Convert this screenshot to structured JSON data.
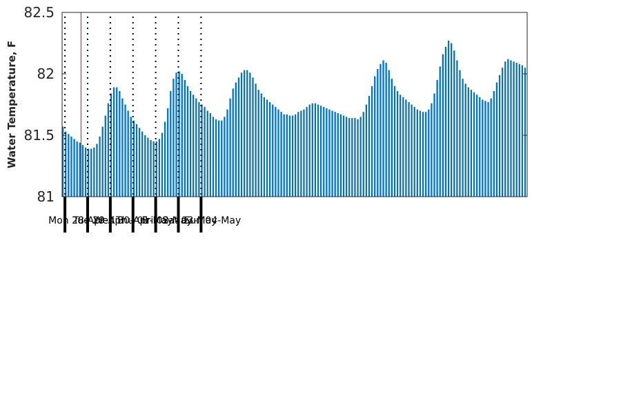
{
  "chart_data": {
    "type": "bar",
    "title": "",
    "xlabel": "",
    "ylabel": "Water Temperature, F",
    "ylim": [
      81,
      82.5
    ],
    "yticks": [
      "81",
      "81.5",
      "82",
      "82.5"
    ],
    "grid": false,
    "legend": "none",
    "bar_color": "#0072BD",
    "marker_color": "#FF0000",
    "x_start": "2025-04-27 21:00",
    "interval_hours": 3,
    "marker_time": "2025-04-28 17:00",
    "day_labels": [
      "Mon 28-Apr",
      "Tue 29-Apr",
      "Wed 30-Apr",
      "Thu 01-May",
      "Fri 02-May",
      "Sat 03-May",
      "Sun 04-May"
    ],
    "values": [
      81.57,
      81.53,
      81.51,
      81.49,
      81.47,
      81.45,
      81.44,
      81.42,
      81.4,
      81.39,
      81.39,
      81.4,
      81.43,
      81.49,
      81.57,
      81.66,
      81.76,
      81.84,
      81.89,
      81.89,
      81.86,
      81.8,
      81.75,
      81.7,
      81.65,
      81.62,
      81.59,
      81.56,
      81.53,
      81.5,
      81.48,
      81.46,
      81.45,
      81.45,
      81.47,
      81.52,
      81.61,
      81.72,
      81.86,
      81.96,
      82.01,
      82.02,
      82.0,
      81.95,
      81.9,
      81.86,
      81.83,
      81.8,
      81.77,
      81.75,
      81.73,
      81.7,
      81.68,
      81.65,
      81.63,
      81.62,
      81.62,
      81.65,
      81.71,
      81.8,
      81.88,
      81.93,
      81.97,
      82.01,
      82.03,
      82.03,
      82.01,
      81.97,
      81.92,
      81.87,
      81.84,
      81.81,
      81.79,
      81.77,
      81.75,
      81.73,
      81.71,
      81.69,
      81.67,
      81.67,
      81.66,
      81.66,
      81.67,
      81.69,
      81.7,
      81.71,
      81.73,
      81.75,
      81.76,
      81.76,
      81.75,
      81.74,
      81.73,
      81.72,
      81.71,
      81.7,
      81.69,
      81.68,
      81.67,
      81.66,
      81.65,
      81.64,
      81.64,
      81.64,
      81.63,
      81.65,
      81.69,
      81.75,
      81.82,
      81.9,
      81.98,
      82.04,
      82.08,
      82.11,
      82.09,
      82.03,
      81.96,
      81.9,
      81.86,
      81.83,
      81.81,
      81.79,
      81.77,
      81.75,
      81.73,
      81.71,
      81.7,
      81.69,
      81.69,
      81.71,
      81.76,
      81.84,
      81.95,
      82.06,
      82.16,
      82.22,
      82.27,
      82.25,
      82.19,
      82.11,
      82.03,
      81.96,
      81.92,
      81.89,
      81.87,
      81.85,
      81.83,
      81.81,
      81.79,
      81.78,
      81.77,
      81.8,
      81.86,
      81.93,
      81.99,
      82.05,
      82.1,
      82.12,
      82.11,
      82.1,
      82.09,
      82.08,
      82.07,
      82.05
    ]
  }
}
